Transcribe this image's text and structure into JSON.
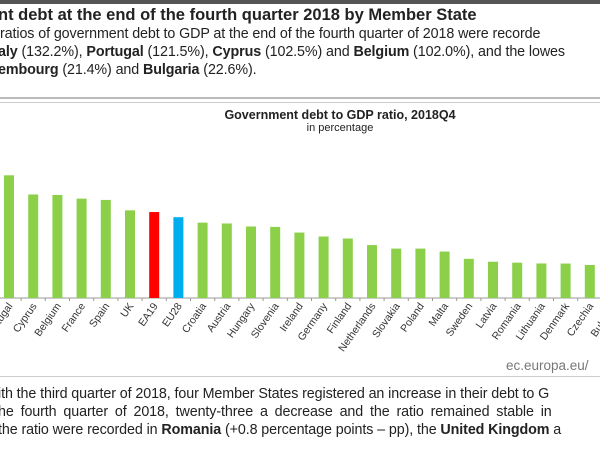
{
  "heading": "nt debt at the end of the fourth quarter 2018 by Member State",
  "intro": {
    "l1": "ratios of government debt to GDP at the end of the fourth quarter of 2018 were recorde",
    "l2": [
      {
        "b": "aly",
        "t": " (132.2%), "
      },
      {
        "b": "Portugal",
        "t": " (121.5%), "
      },
      {
        "b": "Cyprus",
        "t": " (102.5%) and "
      },
      {
        "b": "Belgium",
        "t": " (102.0%), and the lowes"
      }
    ],
    "l3": [
      {
        "b": "embourg",
        "t": " (21.4%) and "
      },
      {
        "b": "Bulgaria",
        "t": " (22.6%)."
      }
    ]
  },
  "chart_data": {
    "type": "bar",
    "title": "Government debt to GDP ratio, 2018Q4",
    "subtitle": "in percentage",
    "categories": [
      "Portugal",
      "Cyprus",
      "Belgium",
      "France",
      "Spain",
      "UK",
      "EA19",
      "EU28",
      "Croatia",
      "Austria",
      "Hungary",
      "Slovenia",
      "Ireland",
      "Germany",
      "Finland",
      "Netherlands",
      "Slovakia",
      "Poland",
      "Malta",
      "Sweden",
      "Latvia",
      "Romania",
      "Lithuania",
      "Denmark",
      "Czechia",
      "Bulgaria"
    ],
    "values": [
      121.5,
      102.5,
      102.0,
      98.4,
      97.1,
      86.8,
      85.1,
      80.0,
      74.6,
      73.8,
      70.8,
      70.4,
      64.8,
      60.9,
      58.9,
      52.4,
      48.9,
      48.9,
      46.0,
      38.8,
      35.9,
      35.0,
      34.2,
      34.1,
      32.7,
      22.6
    ],
    "colors": {
      "default": "#8cd04a",
      "EA19": "#ff0000",
      "EU28": "#00aeef"
    },
    "grid": false,
    "source": "ec.europa.eu/"
  },
  "outro": {
    "l1": "ith the third quarter of 2018, four Member States registered an increase in their debt to G",
    "l2": "he fourth quarter of 2018, twenty-three a decrease and the ratio remained stable in",
    "l3": [
      {
        "b": "",
        "t": "the ratio were recorded in "
      },
      {
        "b": "Romania",
        "t": " (+0.8 percentage points – pp), the "
      },
      {
        "b": "United Kingdom",
        "t": " a"
      }
    ]
  }
}
